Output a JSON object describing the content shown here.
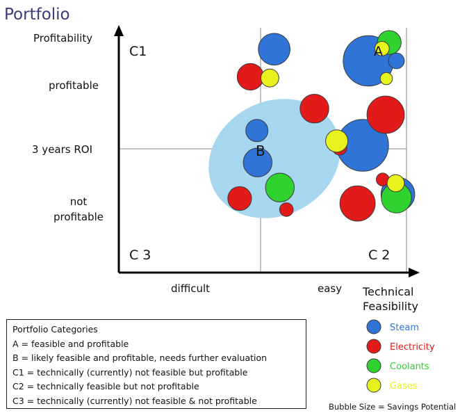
{
  "chart_data": {
    "type": "scatter",
    "title": "Portfolio",
    "xlabel": "Technical Feasibility",
    "ylabel": "Profitability",
    "x_ticks": [
      "difficult",
      "easy"
    ],
    "y_ticks": [
      "profitable",
      "3 years ROI",
      "not profitable"
    ],
    "xlim": [
      0,
      4
    ],
    "ylim": [
      0,
      4
    ],
    "quadrants": [
      "C1",
      "A",
      "C 3",
      "C 2"
    ],
    "cluster_label": "B",
    "legend": {
      "placement": "right",
      "items": [
        {
          "name": "Steam",
          "color": "#2f74d6"
        },
        {
          "name": "Electricity",
          "color": "#e31a1a"
        },
        {
          "name": "Coolants",
          "color": "#2fd22f"
        },
        {
          "name": "Gases",
          "color": "#e8f21c"
        }
      ]
    },
    "size_note": "Bubble Size = Savings Potential",
    "series": [
      {
        "name": "Steam",
        "color": "#2f74d6",
        "points": [
          {
            "x": 2.16,
            "y": 3.65,
            "size": 0.44
          },
          {
            "x": 3.47,
            "y": 3.46,
            "size": 0.7
          },
          {
            "x": 3.86,
            "y": 3.46,
            "size": 0.22
          },
          {
            "x": 1.92,
            "y": 2.32,
            "size": 0.31
          },
          {
            "x": 3.39,
            "y": 2.08,
            "size": 0.72
          },
          {
            "x": 1.93,
            "y": 1.8,
            "size": 0.4
          },
          {
            "x": 3.88,
            "y": 1.28,
            "size": 0.47
          }
        ]
      },
      {
        "name": "Electricity",
        "color": "#e31a1a",
        "points": [
          {
            "x": 1.83,
            "y": 3.2,
            "size": 0.37
          },
          {
            "x": 2.72,
            "y": 2.68,
            "size": 0.4
          },
          {
            "x": 3.71,
            "y": 2.58,
            "size": 0.52
          },
          {
            "x": 3.07,
            "y": 2.04,
            "size": 0.2
          },
          {
            "x": 1.68,
            "y": 1.21,
            "size": 0.33
          },
          {
            "x": 2.33,
            "y": 1.03,
            "size": 0.19
          },
          {
            "x": 3.32,
            "y": 1.13,
            "size": 0.49
          },
          {
            "x": 3.67,
            "y": 1.52,
            "size": 0.18
          }
        ]
      },
      {
        "name": "Coolants",
        "color": "#2fd22f",
        "points": [
          {
            "x": 3.76,
            "y": 3.76,
            "size": 0.33
          },
          {
            "x": 3.86,
            "y": 1.22,
            "size": 0.42
          },
          {
            "x": 2.24,
            "y": 1.39,
            "size": 0.4
          }
        ]
      },
      {
        "name": "Gases",
        "color": "#e8f21c",
        "points": [
          {
            "x": 3.66,
            "y": 3.66,
            "size": 0.2
          },
          {
            "x": 3.72,
            "y": 3.17,
            "size": 0.17
          },
          {
            "x": 2.1,
            "y": 3.18,
            "size": 0.25
          },
          {
            "x": 3.03,
            "y": 2.15,
            "size": 0.31
          },
          {
            "x": 3.85,
            "y": 1.46,
            "size": 0.24
          }
        ]
      }
    ]
  },
  "categories_box": {
    "heading": "Portfolio Categories",
    "lines": [
      "A = feasible and profitable",
      "B = likely feasible and profitable, needs further evaluation",
      "C1 = technically (currently) not feasible but profitable",
      "C2 = technically feasible but not profitable",
      "C3 = technically (currently) not feasible & not profitable"
    ]
  }
}
